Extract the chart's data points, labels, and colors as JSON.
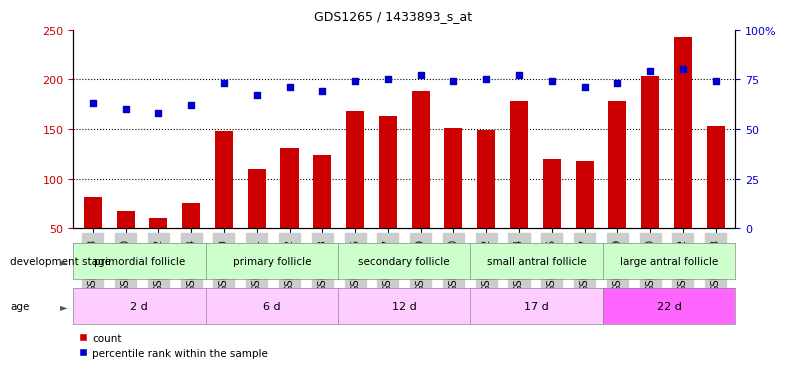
{
  "title": "GDS1265 / 1433893_s_at",
  "categories": [
    "GSM75708",
    "GSM75710",
    "GSM75712",
    "GSM75714",
    "GSM74060",
    "GSM74061",
    "GSM74062",
    "GSM74063",
    "GSM75715",
    "GSM75717",
    "GSM75719",
    "GSM75720",
    "GSM75722",
    "GSM75724",
    "GSM75725",
    "GSM75727",
    "GSM75729",
    "GSM75730",
    "GSM75732",
    "GSM75733"
  ],
  "bar_values": [
    82,
    68,
    61,
    76,
    148,
    110,
    131,
    124,
    168,
    163,
    188,
    151,
    149,
    178,
    120,
    118,
    178,
    203,
    243,
    153
  ],
  "scatter_pct": [
    63,
    60,
    58,
    62,
    73,
    67,
    71,
    69,
    74,
    75,
    77,
    74,
    75,
    77,
    74,
    71,
    73,
    79,
    80,
    74
  ],
  "ylim_left": [
    50,
    250
  ],
  "ylim_right": [
    0,
    100
  ],
  "yticks_left": [
    50,
    100,
    150,
    200,
    250
  ],
  "yticks_right": [
    0,
    25,
    50,
    75,
    100
  ],
  "bar_color": "#cc0000",
  "scatter_color": "#0000cc",
  "stage_groups": [
    {
      "label": "primordial follicle",
      "start": 0,
      "end": 4,
      "color": "#ccffcc"
    },
    {
      "label": "primary follicle",
      "start": 4,
      "end": 8,
      "color": "#ccffcc"
    },
    {
      "label": "secondary follicle",
      "start": 8,
      "end": 12,
      "color": "#ccffcc"
    },
    {
      "label": "small antral follicle",
      "start": 12,
      "end": 16,
      "color": "#ccffcc"
    },
    {
      "label": "large antral follicle",
      "start": 16,
      "end": 20,
      "color": "#ccffcc"
    }
  ],
  "age_groups": [
    {
      "label": "2 d",
      "start": 0,
      "end": 4,
      "color": "#ffccff"
    },
    {
      "label": "6 d",
      "start": 4,
      "end": 8,
      "color": "#ffccff"
    },
    {
      "label": "12 d",
      "start": 8,
      "end": 12,
      "color": "#ffccff"
    },
    {
      "label": "17 d",
      "start": 12,
      "end": 16,
      "color": "#ffccff"
    },
    {
      "label": "22 d",
      "start": 16,
      "end": 20,
      "color": "#ff66ff"
    }
  ],
  "legend_count_label": "count",
  "legend_pct_label": "percentile rank within the sample",
  "dev_stage_label": "development stage",
  "age_label": "age",
  "background_color": "#ffffff",
  "plot_bg_color": "#ffffff",
  "tick_label_bg": "#cccccc"
}
